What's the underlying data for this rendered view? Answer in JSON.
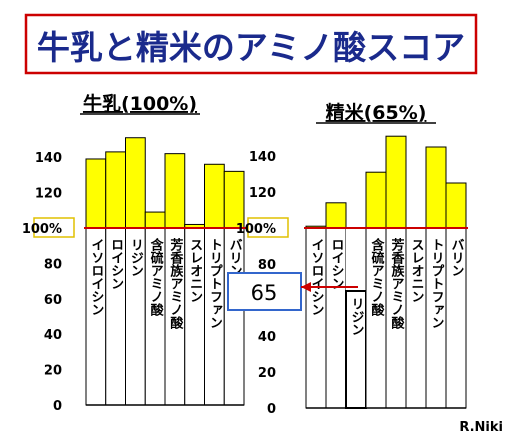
{
  "header": {
    "title": "牛乳と精米のアミノ酸スコア"
  },
  "credit": "R.Niki",
  "callout": {
    "value": "65"
  },
  "colors": {
    "bar": "#ffff00",
    "bar_border": "#000000",
    "reference_line": "#cc0000",
    "title_frame": "#cc0000",
    "callout_frame": "#3366cc"
  },
  "chart_data": [
    {
      "type": "bar",
      "title": "牛乳(100%)",
      "categories": [
        "イソロイシン",
        "ロイシン",
        "リジン",
        "含硫アミノ酸",
        "芳香族アミノ酸",
        "スレオニン",
        "トリプトファン",
        "バリン"
      ],
      "values": [
        139,
        143,
        151,
        109,
        142,
        102,
        136,
        132
      ],
      "yticks": [
        "0",
        "20",
        "40",
        "60",
        "80",
        "100%",
        "120",
        "140"
      ],
      "reference_label": "100%",
      "reference_value": 100,
      "ylim": [
        0,
        155
      ],
      "grid": false
    },
    {
      "type": "bar",
      "title": "精米(65%)",
      "categories": [
        "イソロイシン",
        "ロイシン",
        "リジン",
        "含硫アミノ酸",
        "芳香族アミノ酸",
        "スレオニン",
        "トリプトファン",
        "バリン"
      ],
      "values": [
        101,
        114,
        65,
        131,
        151,
        100,
        145,
        125
      ],
      "yticks": [
        "0",
        "20",
        "40",
        "60",
        "80",
        "100%",
        "120",
        "140"
      ],
      "reference_label": "100%",
      "reference_value": 100,
      "ylim": [
        0,
        155
      ],
      "grid": false
    }
  ]
}
